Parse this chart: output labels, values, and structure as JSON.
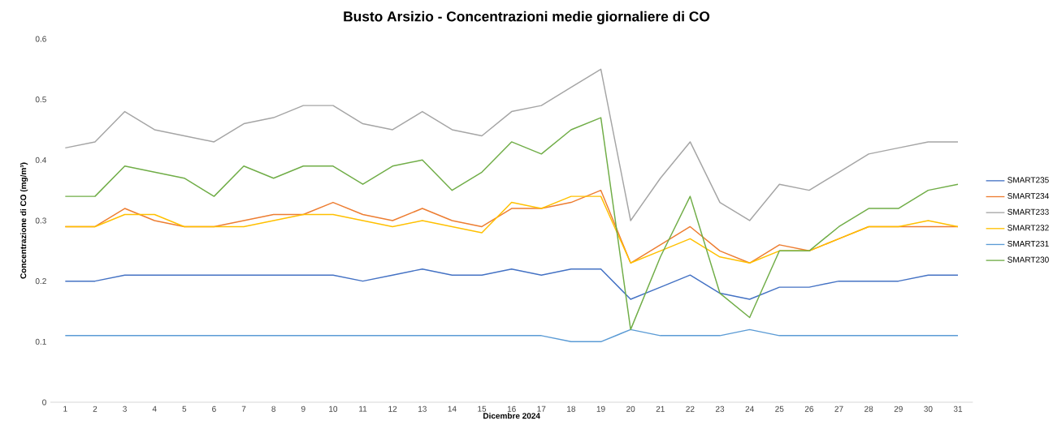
{
  "chart_data": {
    "type": "line",
    "title": "**Busto Arsizio - Concentrazioni medie giornaliere di CO**",
    "xlabel": "**Dicembre 2024**",
    "ylabel": "**Concentrazione di CO (mg/m³)**",
    "categories": [
      "1",
      "2",
      "3",
      "4",
      "5",
      "6",
      "7",
      "8",
      "9",
      "10",
      "11",
      "12",
      "13",
      "14",
      "15",
      "16",
      "17",
      "18",
      "19",
      "20",
      "21",
      "22",
      "23",
      "24",
      "25",
      "26",
      "27",
      "28",
      "29",
      "30",
      "31"
    ],
    "ylim": [
      0,
      0.6
    ],
    "yticks": [
      {
        "value": 0,
        "label": "0"
      },
      {
        "value": 0.1,
        "label": "0.1"
      },
      {
        "value": 0.2,
        "label": "0.2"
      },
      {
        "value": 0.3,
        "label": "0.3"
      },
      {
        "value": 0.4,
        "label": "0.4"
      },
      {
        "value": 0.5,
        "label": "0.5"
      },
      {
        "value": 0.6,
        "label": "0.6"
      }
    ],
    "legend": "right",
    "grid": false,
    "marker": "none",
    "series": [
      {
        "name": "SMART235",
        "color": "#4472c4",
        "values": [
          0.2,
          0.2,
          0.21,
          0.21,
          0.21,
          0.21,
          0.21,
          0.21,
          0.21,
          0.21,
          0.2,
          0.21,
          0.22,
          0.21,
          0.21,
          0.22,
          0.21,
          0.22,
          0.22,
          0.17,
          0.19,
          0.21,
          0.18,
          0.17,
          0.19,
          0.19,
          0.2,
          0.2,
          0.2,
          0.21,
          0.21
        ]
      },
      {
        "name": "SMART234",
        "color": "#ed7d31",
        "values": [
          0.29,
          0.29,
          0.32,
          0.3,
          0.29,
          0.29,
          0.3,
          0.31,
          0.31,
          0.33,
          0.31,
          0.3,
          0.32,
          0.3,
          0.29,
          0.32,
          0.32,
          0.33,
          0.35,
          0.23,
          0.26,
          0.29,
          0.25,
          0.23,
          0.26,
          0.25,
          0.27,
          0.29,
          0.29,
          0.29,
          0.29
        ]
      },
      {
        "name": "SMART233",
        "color": "#a5a5a5",
        "values": [
          0.42,
          0.43,
          0.48,
          0.45,
          0.44,
          0.43,
          0.46,
          0.47,
          0.49,
          0.49,
          0.46,
          0.45,
          0.48,
          0.45,
          0.44,
          0.48,
          0.49,
          0.52,
          0.55,
          0.3,
          0.37,
          0.43,
          0.33,
          0.3,
          0.36,
          0.35,
          0.38,
          0.41,
          0.42,
          0.43,
          0.43
        ]
      },
      {
        "name": "SMART232",
        "color": "#ffc000",
        "values": [
          0.29,
          0.29,
          0.31,
          0.31,
          0.29,
          0.29,
          0.29,
          0.3,
          0.31,
          0.31,
          0.3,
          0.29,
          0.3,
          0.29,
          0.28,
          0.33,
          0.32,
          0.34,
          0.34,
          0.23,
          0.25,
          0.27,
          0.24,
          0.23,
          0.25,
          0.25,
          0.27,
          0.29,
          0.29,
          0.3,
          0.29
        ]
      },
      {
        "name": "SMART231",
        "color": "#5b9bd5",
        "values": [
          0.11,
          0.11,
          0.11,
          0.11,
          0.11,
          0.11,
          0.11,
          0.11,
          0.11,
          0.11,
          0.11,
          0.11,
          0.11,
          0.11,
          0.11,
          0.11,
          0.11,
          0.1,
          0.1,
          0.12,
          0.11,
          0.11,
          0.11,
          0.12,
          0.11,
          0.11,
          0.11,
          0.11,
          0.11,
          0.11,
          0.11
        ]
      },
      {
        "name": "SMART230",
        "color": "#70ad47",
        "values": [
          0.34,
          0.34,
          0.39,
          0.38,
          0.37,
          0.34,
          0.39,
          0.37,
          0.39,
          0.39,
          0.36,
          0.39,
          0.4,
          0.35,
          0.38,
          0.43,
          0.41,
          0.45,
          0.47,
          0.12,
          0.24,
          0.34,
          0.18,
          0.14,
          0.25,
          0.25,
          0.29,
          0.32,
          0.32,
          0.35,
          0.36
        ]
      }
    ]
  }
}
